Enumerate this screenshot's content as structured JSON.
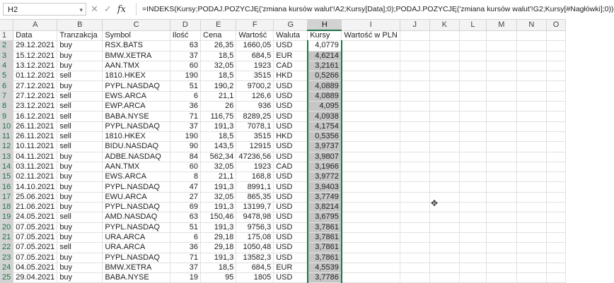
{
  "formula_bar": {
    "name_box": "H2",
    "cancel_icon": "✕",
    "enter_icon": "✓",
    "fx_label": "fx",
    "formula": "=INDEKS(Kursy;PODAJ.POZYCJĘ('zmiana kursów walut'!A2;Kursy[Data];0);PODAJ.POZYCJĘ('zmiana kursów walut'!G2;Kursy[#Nagłówki];0))"
  },
  "columns": [
    "A",
    "B",
    "C",
    "D",
    "E",
    "F",
    "G",
    "H",
    "I",
    "J",
    "K",
    "L",
    "M",
    "N",
    "O"
  ],
  "selected_column": "H",
  "headers": [
    "Data",
    "Tranzakcja",
    "Symbol",
    "Ilość",
    "Cena",
    "Wartość",
    "Waluta",
    "Kursy",
    "Wartość w PLN"
  ],
  "rows": [
    [
      "29.12.2021",
      "buy",
      "RSX.BATS",
      "63",
      "26,35",
      "1660,05",
      "USD",
      "4,0779"
    ],
    [
      "15.12.2021",
      "buy",
      "BMW.XETRA",
      "37",
      "18,5",
      "684,5",
      "EUR",
      "4,6214"
    ],
    [
      "13.12.2021",
      "buy",
      "AAN.TMX",
      "60",
      "32,05",
      "1923",
      "CAD",
      "3,2161"
    ],
    [
      "01.12.2021",
      "sell",
      "1810.HKEX",
      "190",
      "18,5",
      "3515",
      "HKD",
      "0,5266"
    ],
    [
      "27.12.2021",
      "buy",
      "PYPL.NASDAQ",
      "51",
      "190,2",
      "9700,2",
      "USD",
      "4,0889"
    ],
    [
      "27.12.2021",
      "sell",
      "EWS.ARCA",
      "6",
      "21,1",
      "126,6",
      "USD",
      "4,0889"
    ],
    [
      "23.12.2021",
      "sell",
      "EWP.ARCA",
      "36",
      "26",
      "936",
      "USD",
      "4,095"
    ],
    [
      "16.12.2021",
      "sell",
      "BABA.NYSE",
      "71",
      "116,75",
      "8289,25",
      "USD",
      "4,0938"
    ],
    [
      "26.11.2021",
      "sell",
      "PYPL.NASDAQ",
      "37",
      "191,3",
      "7078,1",
      "USD",
      "4,1754"
    ],
    [
      "26.11.2021",
      "sell",
      "1810.HKEX",
      "190",
      "18,5",
      "3515",
      "HKD",
      "0,5356"
    ],
    [
      "10.11.2021",
      "sell",
      "BIDU.NASDAQ",
      "90",
      "143,5",
      "12915",
      "USD",
      "3,9737"
    ],
    [
      "04.11.2021",
      "buy",
      "ADBE.NASDAQ",
      "84",
      "562,34",
      "47236,56",
      "USD",
      "3,9807"
    ],
    [
      "03.11.2021",
      "buy",
      "AAN.TMX",
      "60",
      "32,05",
      "1923",
      "CAD",
      "3,1966"
    ],
    [
      "02.11.2021",
      "buy",
      "EWS.ARCA",
      "8",
      "21,1",
      "168,8",
      "USD",
      "3,9772"
    ],
    [
      "14.10.2021",
      "buy",
      "PYPL.NASDAQ",
      "47",
      "191,3",
      "8991,1",
      "USD",
      "3,9403"
    ],
    [
      "25.06.2021",
      "buy",
      "EWU.ARCA",
      "27",
      "32,05",
      "865,35",
      "USD",
      "3,7749"
    ],
    [
      "21.06.2021",
      "buy",
      "PYPL.NASDAQ",
      "69",
      "191,3",
      "13199,7",
      "USD",
      "3,8214"
    ],
    [
      "24.05.2021",
      "sell",
      "AMD.NASDAQ",
      "63",
      "150,46",
      "9478,98",
      "USD",
      "3,6795"
    ],
    [
      "07.05.2021",
      "buy",
      "PYPL.NASDAQ",
      "51",
      "191,3",
      "9756,3",
      "USD",
      "3,7861"
    ],
    [
      "07.05.2021",
      "buy",
      "URA.ARCA",
      "6",
      "29,18",
      "175,08",
      "USD",
      "3,7861"
    ],
    [
      "07.05.2021",
      "sell",
      "URA.ARCA",
      "36",
      "29,18",
      "1050,48",
      "USD",
      "3,7861"
    ],
    [
      "07.05.2021",
      "buy",
      "PYPL.NASDAQ",
      "71",
      "191,3",
      "13582,3",
      "USD",
      "3,7861"
    ],
    [
      "04.05.2021",
      "buy",
      "BMW.XETRA",
      "37",
      "18,5",
      "684,5",
      "EUR",
      "4,5539"
    ],
    [
      "29.04.2021",
      "buy",
      "BABA.NYSE",
      "19",
      "95",
      "1805",
      "USD",
      "3,7786"
    ]
  ],
  "accent_color": "#217346"
}
